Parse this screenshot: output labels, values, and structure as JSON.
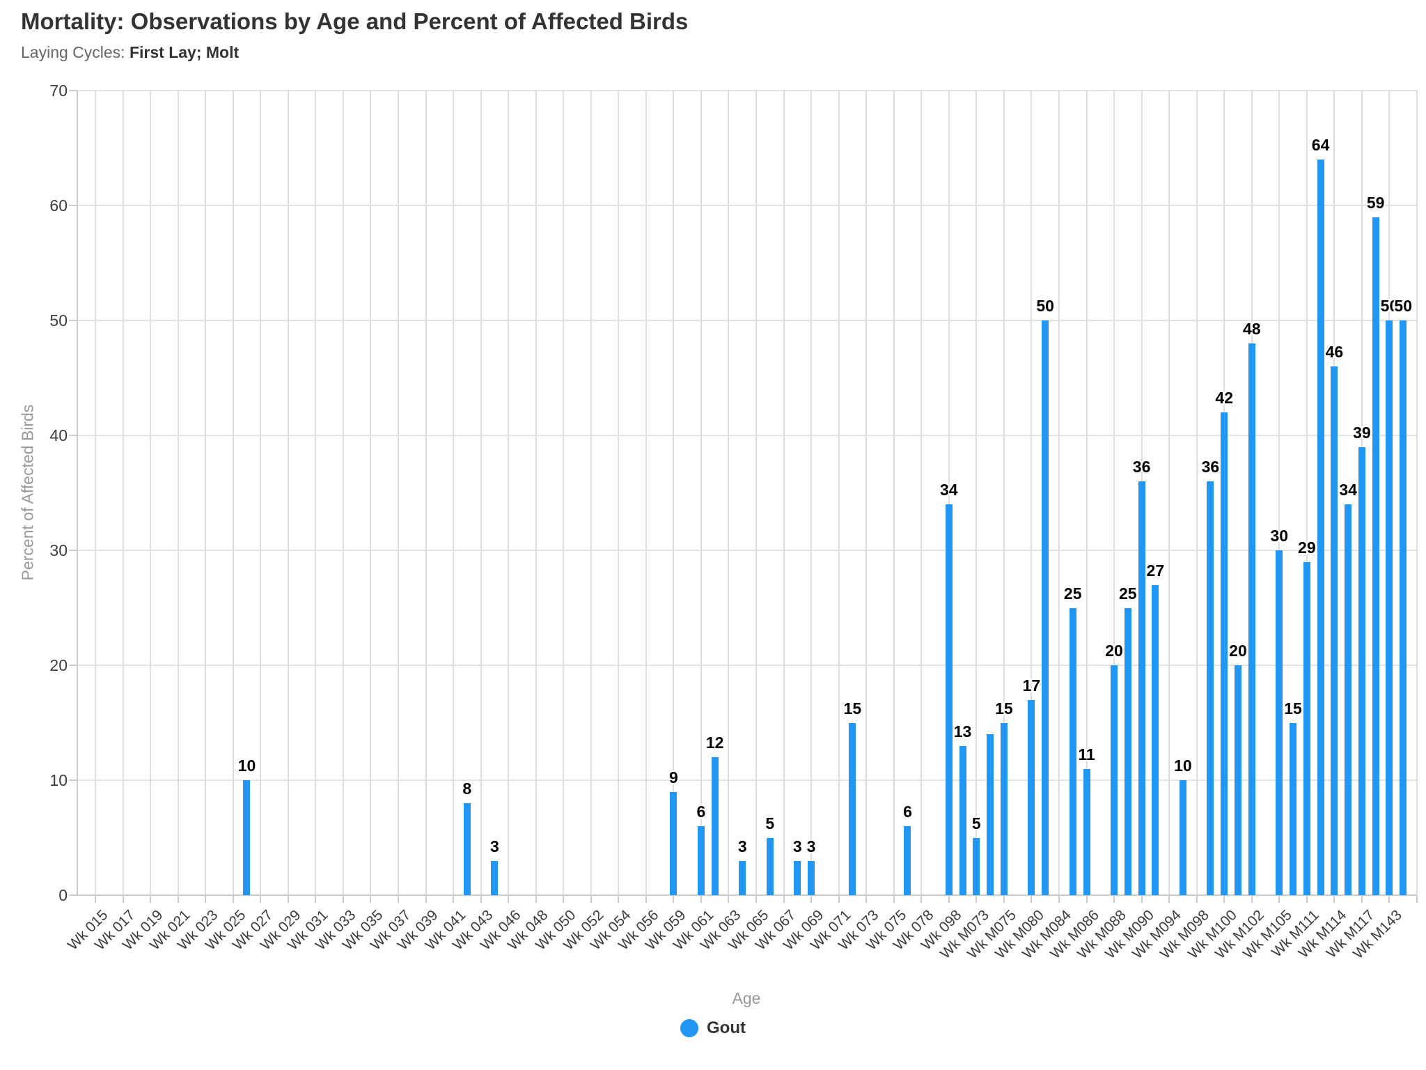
{
  "header": {
    "title": "Mortality: Observations by Age and Percent of Affected Birds",
    "subtitle_prefix": "Laying Cycles: ",
    "subtitle_bold": "First Lay; Molt"
  },
  "colors": {
    "bar": "#2196F3",
    "grid": "#e3e3e3",
    "axis_line": "#cccccc",
    "title_text": "#333333",
    "subtitle_muted_text": "#666666",
    "axis_title_text": "#999999",
    "tick_label_text": "#3c3c3c",
    "data_label_text": "#000000",
    "background": "#ffffff"
  },
  "legend": {
    "items": [
      {
        "label": "Gout",
        "color": "#2196F3"
      }
    ]
  },
  "chart_data": {
    "type": "bar",
    "title": "Mortality: Observations by Age and Percent of Affected Birds",
    "subtitle": "Laying Cycles: First Lay; Molt",
    "xlabel": "Age",
    "ylabel": "Percent of Affected Birds",
    "ylim": [
      0,
      70
    ],
    "yticks": [
      0,
      10,
      20,
      30,
      40,
      50,
      60,
      70
    ],
    "grid": true,
    "legend_position": "bottom-center",
    "series_name": "Gout",
    "tick_labels": [
      "Wk 015",
      "Wk 017",
      "Wk 019",
      "Wk 021",
      "Wk 023",
      "Wk 025",
      "Wk 027",
      "Wk 029",
      "Wk 031",
      "Wk 033",
      "Wk 035",
      "Wk 037",
      "Wk 039",
      "Wk 041",
      "Wk 043",
      "Wk 046",
      "Wk 048",
      "Wk 050",
      "Wk 052",
      "Wk 054",
      "Wk 056",
      "Wk 059",
      "Wk 061",
      "Wk 063",
      "Wk 065",
      "Wk 067",
      "Wk 069",
      "Wk 071",
      "Wk 073",
      "Wk 075",
      "Wk 078",
      "Wk 098",
      "Wk M073",
      "Wk M075",
      "Wk M080",
      "Wk M084",
      "Wk M086",
      "Wk M088",
      "Wk M090",
      "Wk M094",
      "Wk M098",
      "Wk M100",
      "Wk M102",
      "Wk M105",
      "Wk M111",
      "Wk M114",
      "Wk M117",
      "Wk M143"
    ],
    "slots_per_label": 2,
    "num_slots": 96,
    "points": [
      {
        "slot": 11,
        "value": 10
      },
      {
        "slot": 27,
        "value": 8
      },
      {
        "slot": 29,
        "value": 3
      },
      {
        "slot": 42,
        "value": 9
      },
      {
        "slot": 44,
        "value": 6
      },
      {
        "slot": 45,
        "value": 12
      },
      {
        "slot": 47,
        "value": 3
      },
      {
        "slot": 49,
        "value": 5
      },
      {
        "slot": 51,
        "value": 3
      },
      {
        "slot": 52,
        "value": 3
      },
      {
        "slot": 55,
        "value": 15
      },
      {
        "slot": 59,
        "value": 6
      },
      {
        "slot": 62,
        "value": 34
      },
      {
        "slot": 63,
        "value": 13
      },
      {
        "slot": 64,
        "value": 5
      },
      {
        "slot": 65,
        "value": 14,
        "label_hidden": true
      },
      {
        "slot": 66,
        "value": 15
      },
      {
        "slot": 68,
        "value": 17
      },
      {
        "slot": 69,
        "value": 50
      },
      {
        "slot": 71,
        "value": 25
      },
      {
        "slot": 72,
        "value": 11
      },
      {
        "slot": 74,
        "value": 20
      },
      {
        "slot": 75,
        "value": 25
      },
      {
        "slot": 76,
        "value": 36
      },
      {
        "slot": 77,
        "value": 27
      },
      {
        "slot": 79,
        "value": 10
      },
      {
        "slot": 81,
        "value": 36
      },
      {
        "slot": 82,
        "value": 42
      },
      {
        "slot": 83,
        "value": 20
      },
      {
        "slot": 84,
        "value": 48
      },
      {
        "slot": 86,
        "value": 30
      },
      {
        "slot": 87,
        "value": 15
      },
      {
        "slot": 88,
        "value": 29
      },
      {
        "slot": 89,
        "value": 64
      },
      {
        "slot": 90,
        "value": 46
      },
      {
        "slot": 91,
        "value": 34
      },
      {
        "slot": 92,
        "value": 39
      },
      {
        "slot": 93,
        "value": 59
      },
      {
        "slot": 94,
        "value": 50
      },
      {
        "slot": 95,
        "value": 50
      }
    ]
  }
}
